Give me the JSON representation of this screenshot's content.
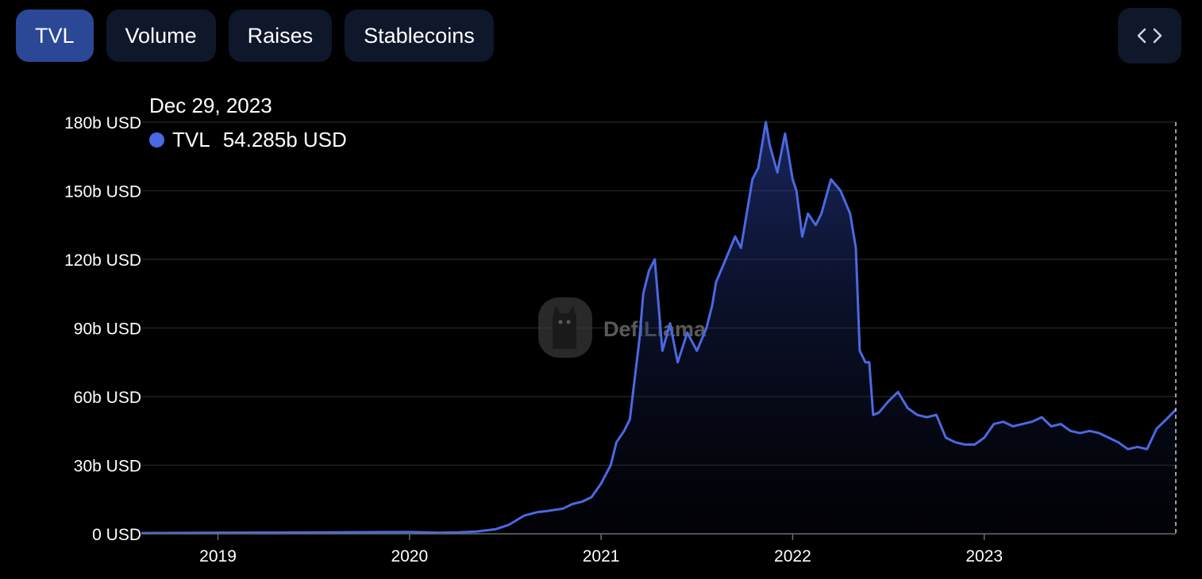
{
  "tabs": [
    {
      "label": "TVL",
      "active": true
    },
    {
      "label": "Volume",
      "active": false
    },
    {
      "label": "Raises",
      "active": false
    },
    {
      "label": "Stablecoins",
      "active": false
    }
  ],
  "embed_icon": "code-brackets-icon",
  "watermark": {
    "text": "DefiLlama",
    "icon": "llama-logo-icon"
  },
  "tooltip": {
    "date": "Dec 29, 2023",
    "series_name": "TVL",
    "value": "54.285b USD"
  },
  "colors": {
    "line": "#4a69e2",
    "tab_active": "#2a4896",
    "tab_inactive": "#0f172a"
  },
  "chart_data": {
    "type": "area",
    "ylim": [
      0,
      180
    ],
    "xlim": [
      2018.6,
      2024.0
    ],
    "yticks": [
      {
        "v": 0,
        "label": "0 USD"
      },
      {
        "v": 30,
        "label": "30b USD"
      },
      {
        "v": 60,
        "label": "60b USD"
      },
      {
        "v": 90,
        "label": "90b USD"
      },
      {
        "v": 120,
        "label": "120b USD"
      },
      {
        "v": 150,
        "label": "150b USD"
      },
      {
        "v": 180,
        "label": "180b USD"
      }
    ],
    "xticks": [
      {
        "v": 2019.0,
        "label": "2019"
      },
      {
        "v": 2020.0,
        "label": "2020"
      },
      {
        "v": 2021.0,
        "label": "2021"
      },
      {
        "v": 2022.0,
        "label": "2022"
      },
      {
        "v": 2023.0,
        "label": "2023"
      }
    ],
    "series": [
      {
        "name": "TVL",
        "x": [
          2018.6,
          2019.0,
          2019.5,
          2020.0,
          2020.15,
          2020.25,
          2020.35,
          2020.45,
          2020.52,
          2020.6,
          2020.67,
          2020.72,
          2020.8,
          2020.85,
          2020.9,
          2020.95,
          2021.0,
          2021.05,
          2021.08,
          2021.12,
          2021.15,
          2021.2,
          2021.22,
          2021.25,
          2021.28,
          2021.32,
          2021.36,
          2021.4,
          2021.45,
          2021.5,
          2021.55,
          2021.58,
          2021.6,
          2021.65,
          2021.7,
          2021.73,
          2021.76,
          2021.79,
          2021.82,
          2021.85,
          2021.86,
          2021.88,
          2021.92,
          2021.96,
          2022.0,
          2022.02,
          2022.05,
          2022.08,
          2022.12,
          2022.15,
          2022.2,
          2022.25,
          2022.3,
          2022.33,
          2022.35,
          2022.38,
          2022.4,
          2022.42,
          2022.45,
          2022.5,
          2022.55,
          2022.6,
          2022.65,
          2022.7,
          2022.75,
          2022.8,
          2022.85,
          2022.9,
          2022.95,
          2023.0,
          2023.05,
          2023.1,
          2023.15,
          2023.2,
          2023.25,
          2023.3,
          2023.35,
          2023.4,
          2023.45,
          2023.5,
          2023.55,
          2023.6,
          2023.65,
          2023.7,
          2023.75,
          2023.8,
          2023.85,
          2023.9,
          2023.95,
          2024.0
        ],
        "values": [
          0.3,
          0.5,
          0.6,
          0.8,
          0.5,
          0.6,
          1.0,
          2.0,
          4.0,
          8.0,
          9.5,
          10.0,
          11.0,
          13.0,
          14.0,
          16.0,
          22.0,
          30.0,
          40.0,
          45.0,
          50.0,
          85.0,
          105.0,
          115.0,
          120.0,
          80.0,
          92.0,
          75.0,
          88.0,
          80.0,
          90.0,
          100.0,
          110.0,
          120.0,
          130.0,
          125.0,
          140.0,
          155.0,
          160.0,
          175.0,
          180.0,
          170.0,
          158.0,
          175.0,
          155.0,
          150.0,
          130.0,
          140.0,
          135.0,
          140.0,
          155.0,
          150.0,
          140.0,
          125.0,
          80.0,
          75.0,
          75.0,
          52.0,
          53.0,
          58.0,
          62.0,
          55.0,
          52.0,
          51.0,
          52.0,
          42.0,
          40.0,
          39.0,
          39.0,
          42.0,
          48.0,
          49.0,
          47.0,
          48.0,
          49.0,
          51.0,
          47.0,
          48.0,
          45.0,
          44.0,
          45.0,
          44.0,
          42.0,
          40.0,
          37.0,
          38.0,
          37.0,
          46.0,
          50.0,
          54.3
        ]
      }
    ]
  }
}
